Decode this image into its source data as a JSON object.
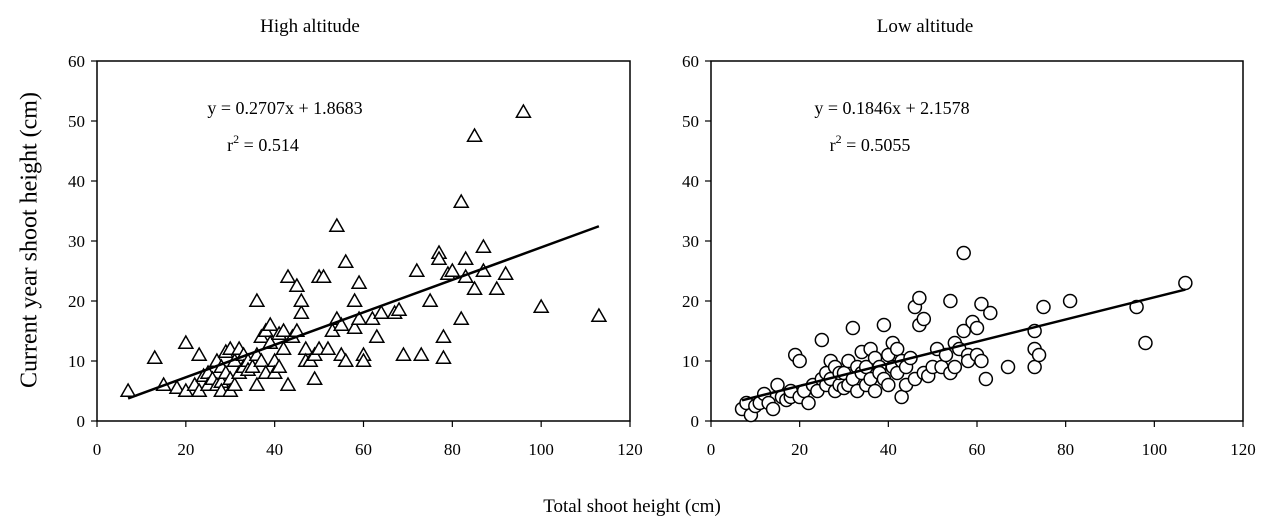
{
  "figure": {
    "ylabel": "Current year shoot height (cm)",
    "xlabel": "Total shoot height (cm)"
  },
  "chart_data": [
    {
      "type": "scatter",
      "title": "High altitude",
      "marker": "triangle",
      "xlim": [
        0,
        120
      ],
      "ylim": [
        0,
        60
      ],
      "xticks": [
        "0",
        "20",
        "40",
        "60",
        "80",
        "100",
        "120"
      ],
      "yticks": [
        "0",
        "10",
        "20",
        "30",
        "40",
        "50",
        "60"
      ],
      "equation": "y = 0.2707x + 1.8683",
      "r2_label": "r",
      "r2_value": " = 0.514",
      "trendline": {
        "slope": 0.2707,
        "intercept": 1.8683,
        "x_range": [
          7,
          113
        ]
      },
      "points": [
        [
          7,
          5
        ],
        [
          13,
          10.5
        ],
        [
          15,
          6
        ],
        [
          18,
          5.5
        ],
        [
          20,
          13
        ],
        [
          20,
          5
        ],
        [
          22,
          6
        ],
        [
          23,
          11
        ],
        [
          23,
          5
        ],
        [
          24,
          7.5
        ],
        [
          25,
          8
        ],
        [
          25,
          6
        ],
        [
          26,
          7
        ],
        [
          27,
          10
        ],
        [
          27,
          6
        ],
        [
          28,
          9
        ],
        [
          28,
          6.5
        ],
        [
          28,
          5
        ],
        [
          29,
          11.5
        ],
        [
          29,
          8
        ],
        [
          30,
          7
        ],
        [
          30,
          12
        ],
        [
          30,
          5
        ],
        [
          31,
          10
        ],
        [
          31,
          6
        ],
        [
          32,
          8
        ],
        [
          32,
          12
        ],
        [
          33,
          11
        ],
        [
          33,
          9
        ],
        [
          34,
          10
        ],
        [
          34,
          8.5
        ],
        [
          35,
          9
        ],
        [
          36,
          11
        ],
        [
          36,
          20
        ],
        [
          36,
          6
        ],
        [
          37,
          14
        ],
        [
          37,
          10
        ],
        [
          38,
          15
        ],
        [
          38,
          8
        ],
        [
          39,
          16
        ],
        [
          39,
          13
        ],
        [
          40,
          10
        ],
        [
          40,
          8
        ],
        [
          41,
          14.5
        ],
        [
          41,
          9
        ],
        [
          42,
          15
        ],
        [
          42,
          12
        ],
        [
          43,
          6
        ],
        [
          43,
          24
        ],
        [
          44,
          14
        ],
        [
          45,
          22.5
        ],
        [
          45,
          15
        ],
        [
          46,
          18
        ],
        [
          46,
          20
        ],
        [
          47,
          12
        ],
        [
          47,
          10
        ],
        [
          48,
          10
        ],
        [
          49,
          7
        ],
        [
          49,
          11
        ],
        [
          50,
          12
        ],
        [
          50,
          24
        ],
        [
          51,
          24
        ],
        [
          52,
          12
        ],
        [
          53,
          15
        ],
        [
          54,
          17
        ],
        [
          54,
          32.5
        ],
        [
          55,
          11
        ],
        [
          55,
          16
        ],
        [
          56,
          10
        ],
        [
          56,
          26.5
        ],
        [
          58,
          15.5
        ],
        [
          58,
          20
        ],
        [
          59,
          17
        ],
        [
          59,
          23
        ],
        [
          60,
          11
        ],
        [
          60,
          10
        ],
        [
          62,
          17
        ],
        [
          63,
          14
        ],
        [
          64,
          18
        ],
        [
          67,
          18
        ],
        [
          68,
          18.5
        ],
        [
          69,
          11
        ],
        [
          72,
          25
        ],
        [
          73,
          11
        ],
        [
          75,
          20
        ],
        [
          77,
          28
        ],
        [
          77,
          27
        ],
        [
          78,
          10.5
        ],
        [
          78,
          14
        ],
        [
          79,
          24.5
        ],
        [
          80,
          25
        ],
        [
          82,
          36.5
        ],
        [
          82,
          17
        ],
        [
          83,
          24
        ],
        [
          83,
          27
        ],
        [
          85,
          47.5
        ],
        [
          85,
          22
        ],
        [
          87,
          29
        ],
        [
          87,
          25
        ],
        [
          90,
          22
        ],
        [
          92,
          24.5
        ],
        [
          96,
          51.5
        ],
        [
          100,
          19
        ],
        [
          113,
          17.5
        ]
      ]
    },
    {
      "type": "scatter",
      "title": "Low altitude",
      "marker": "circle",
      "xlim": [
        0,
        120
      ],
      "ylim": [
        0,
        60
      ],
      "xticks": [
        "0",
        "20",
        "40",
        "60",
        "80",
        "100",
        "120"
      ],
      "yticks": [
        "0",
        "10",
        "20",
        "30",
        "40",
        "50",
        "60"
      ],
      "equation": "y = 0.1846x + 2.1578",
      "r2_label": "r",
      "r2_value": " = 0.5055",
      "trendline": {
        "slope": 0.1846,
        "intercept": 2.1578,
        "x_range": [
          7,
          107
        ]
      },
      "points": [
        [
          7,
          2
        ],
        [
          8,
          3
        ],
        [
          9,
          1
        ],
        [
          10,
          2.5
        ],
        [
          11,
          3
        ],
        [
          12,
          4.5
        ],
        [
          13,
          3
        ],
        [
          14,
          2
        ],
        [
          15,
          6
        ],
        [
          16,
          4
        ],
        [
          17,
          3.5
        ],
        [
          18,
          4
        ],
        [
          18,
          5
        ],
        [
          19,
          11
        ],
        [
          20,
          4
        ],
        [
          20,
          10
        ],
        [
          21,
          5
        ],
        [
          22,
          3
        ],
        [
          23,
          6
        ],
        [
          24,
          5
        ],
        [
          25,
          13.5
        ],
        [
          25,
          7
        ],
        [
          26,
          8
        ],
        [
          26,
          6
        ],
        [
          27,
          10
        ],
        [
          27,
          7
        ],
        [
          28,
          5
        ],
        [
          28,
          9
        ],
        [
          29,
          6
        ],
        [
          29,
          8
        ],
        [
          30,
          8
        ],
        [
          30,
          5.5
        ],
        [
          31,
          6
        ],
        [
          31,
          10
        ],
        [
          32,
          15.5
        ],
        [
          32,
          7
        ],
        [
          33,
          5
        ],
        [
          33,
          9
        ],
        [
          34,
          11.5
        ],
        [
          34,
          8
        ],
        [
          35,
          6
        ],
        [
          35,
          9
        ],
        [
          36,
          12
        ],
        [
          36,
          7
        ],
        [
          37,
          10.5
        ],
        [
          37,
          5
        ],
        [
          38,
          9
        ],
        [
          38,
          8
        ],
        [
          39,
          16
        ],
        [
          39,
          7
        ],
        [
          40,
          11
        ],
        [
          40,
          6
        ],
        [
          41,
          9
        ],
        [
          41,
          13
        ],
        [
          42,
          8
        ],
        [
          42,
          12
        ],
        [
          43,
          4
        ],
        [
          43,
          10
        ],
        [
          44,
          9
        ],
        [
          44,
          6
        ],
        [
          45,
          10.5
        ],
        [
          46,
          19
        ],
        [
          46,
          7
        ],
        [
          47,
          20.5
        ],
        [
          47,
          16
        ],
        [
          48,
          8
        ],
        [
          48,
          17
        ],
        [
          49,
          7.5
        ],
        [
          50,
          9
        ],
        [
          51,
          12
        ],
        [
          52,
          9
        ],
        [
          53,
          11
        ],
        [
          54,
          20
        ],
        [
          54,
          8
        ],
        [
          55,
          9
        ],
        [
          55,
          13
        ],
        [
          56,
          12
        ],
        [
          57,
          28
        ],
        [
          57,
          15
        ],
        [
          58,
          11
        ],
        [
          58,
          10
        ],
        [
          59,
          16.5
        ],
        [
          60,
          11
        ],
        [
          60,
          15.5
        ],
        [
          61,
          19.5
        ],
        [
          61,
          10
        ],
        [
          62,
          7
        ],
        [
          63,
          18
        ],
        [
          67,
          9
        ],
        [
          73,
          15
        ],
        [
          73,
          12
        ],
        [
          73,
          9
        ],
        [
          74,
          11
        ],
        [
          75,
          19
        ],
        [
          81,
          20
        ],
        [
          96,
          19
        ],
        [
          98,
          13
        ],
        [
          107,
          23
        ]
      ]
    }
  ]
}
